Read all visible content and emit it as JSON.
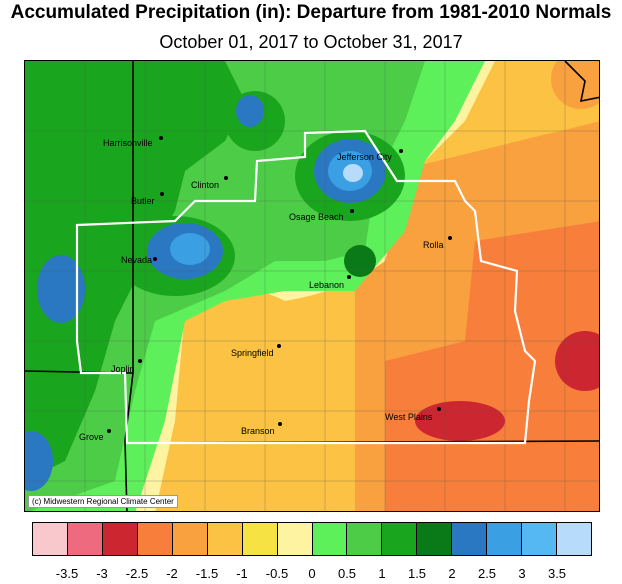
{
  "title": "Accumulated Precipitation (in): Departure from 1981-2010 Normals",
  "subtitle": "October 01, 2017 to October 31, 2017",
  "credit": "(c) Midwestern Regional Climate Center",
  "cities": [
    {
      "name": "Harrisonville",
      "id": "harrisonville"
    },
    {
      "name": "Jefferson City",
      "id": "jefferson-city"
    },
    {
      "name": "Clinton",
      "id": "clinton"
    },
    {
      "name": "Butler",
      "id": "butler"
    },
    {
      "name": "Osage Beach",
      "id": "osage-beach"
    },
    {
      "name": "Rolla",
      "id": "rolla"
    },
    {
      "name": "Nevada",
      "id": "nevada"
    },
    {
      "name": "Lebanon",
      "id": "lebanon"
    },
    {
      "name": "Springfield",
      "id": "springfield"
    },
    {
      "name": "Joplin",
      "id": "joplin"
    },
    {
      "name": "West Plains",
      "id": "west-plains"
    },
    {
      "name": "Branson",
      "id": "branson"
    },
    {
      "name": "Grove",
      "id": "grove"
    }
  ],
  "legend": {
    "colors": [
      "#f9c8cc",
      "#ee6a7e",
      "#cc2630",
      "#f77f3b",
      "#f9a03f",
      "#fbc243",
      "#f6e242",
      "#fdf3a0",
      "#5df05a",
      "#4ccc47",
      "#1aa51f",
      "#0a7a18",
      "#2a78c2",
      "#3a9fe3",
      "#55b8f2",
      "#b7dcfb"
    ],
    "ticks": [
      "-3.5",
      "-3",
      "-2.5",
      "-2",
      "-1.5",
      "-1",
      "-0.5",
      "0",
      "0.5",
      "1",
      "1.5",
      "2",
      "2.5",
      "3",
      "3.5"
    ]
  }
}
